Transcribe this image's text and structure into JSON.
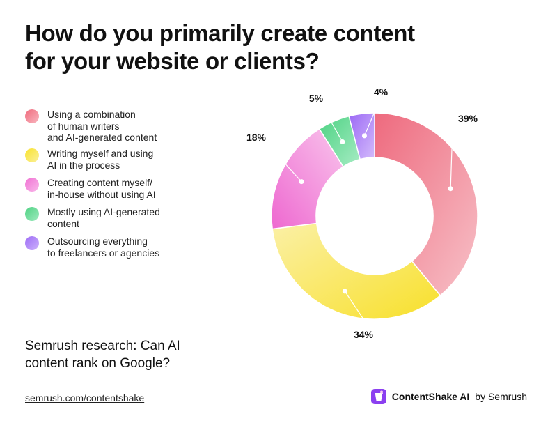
{
  "title_lines": [
    "How do you primarily create content",
    "for your website or clients?"
  ],
  "chart_data": {
    "type": "pie",
    "title": "How do you primarily create content for your website or clients?",
    "series": [
      {
        "label_lines": [
          "Using a combination",
          "of human writers",
          "and AI-generated content"
        ],
        "value": 39,
        "value_label": "39%",
        "color": "#f06e80"
      },
      {
        "label_lines": [
          "Writing myself and using",
          "AI in the process"
        ],
        "value": 34,
        "value_label": "34%",
        "color": "#f8e43a"
      },
      {
        "label_lines": [
          "Creating content myself/",
          "in-house without using AI"
        ],
        "value": 18,
        "value_label": "18%",
        "color": "#f27dd6"
      },
      {
        "label_lines": [
          "Mostly using AI-generated",
          "content"
        ],
        "value": 5,
        "value_label": "5%",
        "color": "#5fd68e"
      },
      {
        "label_lines": [
          "Outsourcing everything",
          "to freelancers or agencies"
        ],
        "value": 4,
        "value_label": "4%",
        "color": "#a879f5"
      }
    ],
    "legend_position": "left"
  },
  "research_lines": [
    "Semrush research: Can AI",
    "content rank on Google?"
  ],
  "footer": {
    "link": "semrush.com/contentshake",
    "brand_name": "ContentShake AI",
    "brand_suffix": "by Semrush",
    "logo_icon": "contentshake-logo-icon",
    "logo_color": "#8b3ff0"
  }
}
